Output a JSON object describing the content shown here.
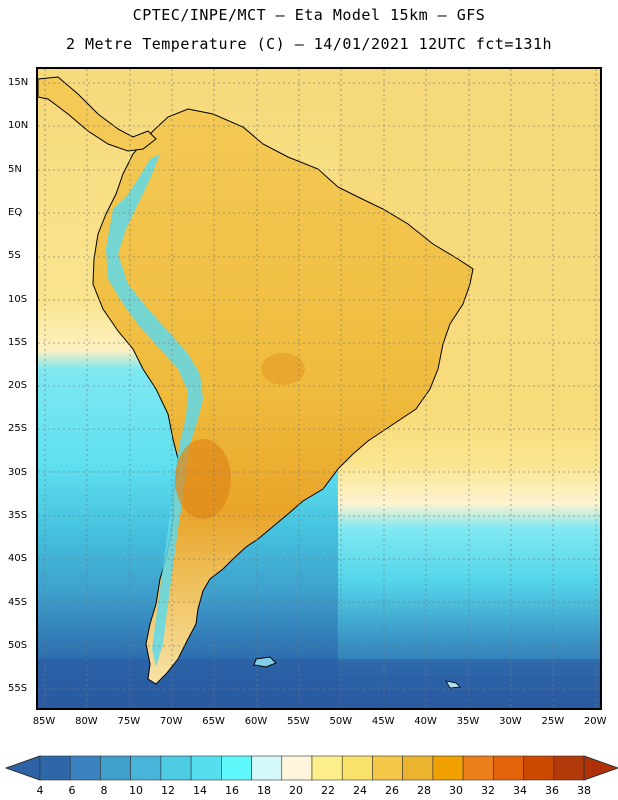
{
  "header": {
    "line1": "CPTEC/INPE/MCT –  Eta Model 15km – GFS",
    "line2": "2 Metre Temperature (C) – 14/01/2021 12UTC fct=131h"
  },
  "map": {
    "lat_labels": [
      "15N",
      "10N",
      "5N",
      "EQ",
      "5S",
      "10S",
      "15S",
      "20S",
      "25S",
      "30S",
      "35S",
      "40S",
      "45S",
      "50S",
      "55S"
    ],
    "lon_labels": [
      "85W",
      "80W",
      "75W",
      "70W",
      "65W",
      "60W",
      "55W",
      "50W",
      "45W",
      "40W",
      "35W",
      "30W",
      "25W",
      "20W"
    ],
    "lat_extent": [
      17,
      -58
    ],
    "lon_extent": [
      -87,
      -19.5
    ]
  },
  "colorbar": {
    "labels": [
      "4",
      "6",
      "8",
      "10",
      "12",
      "14",
      "16",
      "18",
      "20",
      "22",
      "24",
      "26",
      "28",
      "30",
      "32",
      "34",
      "36",
      "38"
    ],
    "colors": [
      "#2e67a8",
      "#3a82bf",
      "#40a0cc",
      "#46b5d9",
      "#4dcbe3",
      "#55dfee",
      "#5ff8fb",
      "#d4f7fa",
      "#fff4dc",
      "#fdf08c",
      "#fae16a",
      "#f4c846",
      "#ecb32f",
      "#f0a000",
      "#eb7f1c",
      "#e2630a",
      "#cc4a00",
      "#b23a0a"
    ],
    "low_extend_color": "#2d62a4",
    "high_extend_color": "#b03008"
  }
}
